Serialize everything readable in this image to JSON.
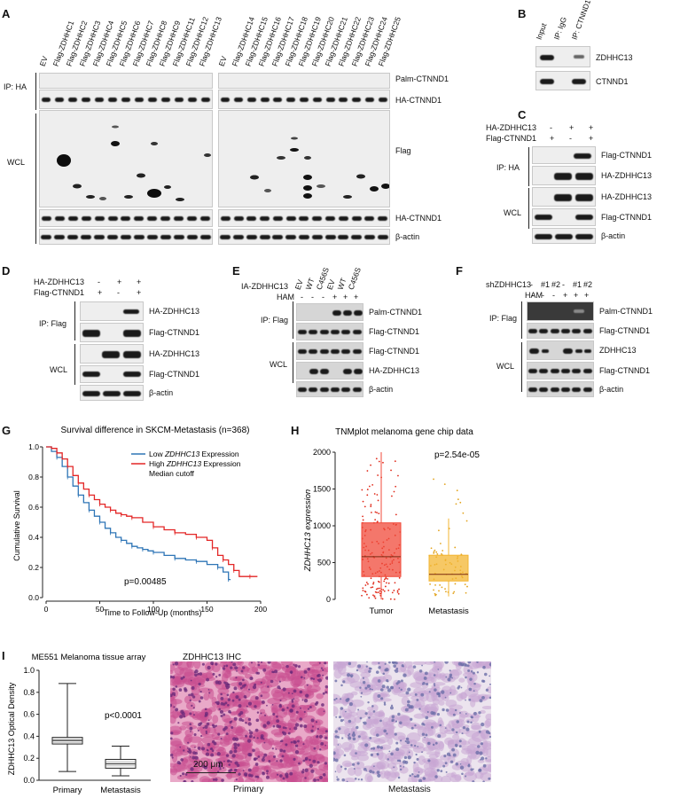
{
  "panels": {
    "A": "A",
    "B": "B",
    "C": "C",
    "D": "D",
    "E": "E",
    "F": "F",
    "G": "G",
    "H": "H",
    "I": "I"
  },
  "panelA": {
    "lanes_left": [
      "EV",
      "Flag-ZDHHC1",
      "Flag-ZDHHC2",
      "Flag-ZDHHC3",
      "Flag-ZDHHC4",
      "Flag-ZDHHC5",
      "Flag-ZDHHC6",
      "Flag-ZDHHC7",
      "Flag-ZDHHC8",
      "Flag-ZDHHC9",
      "Flag-ZDHHC11",
      "Flag-ZDHHC12",
      "Flag-ZDHHC13"
    ],
    "lanes_right": [
      "EV",
      "Flag-ZDHHC14",
      "Flag-ZDHHC15",
      "Flag-ZDHHC16",
      "Flag-ZDHHC17",
      "Flag-ZDHHC18",
      "Flag-ZDHHC19",
      "Flag-ZDHHC20",
      "Flag-ZDHHC21",
      "Flag-ZDHHC22",
      "Flag-ZDHHC23",
      "Flag-ZDHHC24",
      "Flag-ZDHHC25"
    ],
    "group_ip": "IP: HA",
    "group_wcl": "WCL",
    "rows": [
      "Palm-CTNND1",
      "HA-CTNND1",
      "Flag",
      "HA-CTNND1",
      "β-actin"
    ]
  },
  "panelB": {
    "lanes": [
      "Input",
      "IP: IgG",
      "IP: CTNND1"
    ],
    "rows": [
      "ZDHHC13",
      "CTNND1"
    ]
  },
  "panelC": {
    "conditions": [
      {
        "label": "HA-ZDHHC13",
        "signs": [
          "-",
          "+",
          "+"
        ]
      },
      {
        "label": "Flag-CTNND1",
        "signs": [
          "+",
          "-",
          "+"
        ]
      }
    ],
    "group_ip": "IP: HA",
    "group_wcl": "WCL",
    "rows": [
      "Flag-CTNND1",
      "HA-ZDHHC13",
      "HA-ZDHHC13",
      "Flag-CTNND1",
      "β-actin"
    ]
  },
  "panelD": {
    "conditions": [
      {
        "label": "HA-ZDHHC13",
        "signs": [
          "-",
          "+",
          "+"
        ]
      },
      {
        "label": "Flag-CTNND1",
        "signs": [
          "+",
          "-",
          "+"
        ]
      }
    ],
    "group_ip": "IP: Flag",
    "group_wcl": "WCL",
    "rows": [
      "HA-ZDHHC13",
      "Flag-CTNND1",
      "HA-ZDHHC13",
      "Flag-CTNND1",
      "β-actin"
    ]
  },
  "panelE": {
    "row_label": "IA-ZDHHC13",
    "lanes": [
      "EV",
      "WT",
      "C456S",
      "EV",
      "WT",
      "C456S"
    ],
    "ham_label": "HAM",
    "ham_signs": [
      "-",
      "-",
      "-",
      "+",
      "+",
      "+"
    ],
    "group_ip": "IP: Flag",
    "group_wcl": "WCL",
    "rows": [
      "Palm-CTNND1",
      "Flag-CTNND1",
      "Flag-CTNND1",
      "HA-ZDHHC13",
      "β-actin"
    ]
  },
  "panelF": {
    "row_label": "shZDHHC13",
    "sh_signs": [
      "-",
      "#1",
      "#2",
      "-",
      "#1",
      "#2"
    ],
    "ham_label": "HAM",
    "ham_signs": [
      "-",
      "-",
      "-",
      "+",
      "+",
      "+"
    ],
    "group_ip": "IP: Flag",
    "group_wcl": "WCL",
    "rows": [
      "Palm-CTNND1",
      "Flag-CTNND1",
      "ZDHHC13",
      "Flag-CTNND1",
      "β-actin"
    ]
  },
  "panelI": {
    "title": "ME551 Melanoma tissue array",
    "ihc_title": "ZDHHC13 IHC",
    "scale_bar": "200 μm",
    "img_label_primary": "Primary",
    "img_label_metastasis": "Metastasis"
  },
  "chart_data": [
    {
      "type": "line",
      "title": "Survival difference in SKCM-Metastasis (n=368)",
      "xlabel": "Time to Follow-Up (months)",
      "ylabel": "Cumulative Survival",
      "xlim": [
        0,
        200
      ],
      "ylim": [
        0,
        1.0
      ],
      "xticks": [
        0,
        50,
        100,
        150,
        200
      ],
      "yticks": [
        "0.0",
        "0.2",
        "0.4",
        "0.6",
        "0.8",
        "1.0"
      ],
      "legend_title": "",
      "legend": [
        {
          "name": "Low ZDHHC13 Expression",
          "color": "#2e75b6"
        },
        {
          "name": "High ZDHHC13 Expression",
          "color": "#e32626"
        },
        {
          "name": "Median cutoff",
          "color": ""
        }
      ],
      "legend_prefix_low": "Low ",
      "legend_gene": "ZDHHC13",
      "legend_suffix": " Expression",
      "legend_prefix_high": "High ",
      "legend_median": "Median cutoff",
      "annotation": "p=0.00485",
      "series": [
        {
          "name": "Low ZDHHC13 Expression",
          "color": "#2e75b6",
          "x": [
            0,
            5,
            10,
            15,
            20,
            25,
            30,
            35,
            40,
            45,
            50,
            55,
            60,
            65,
            70,
            75,
            80,
            85,
            90,
            95,
            100,
            110,
            120,
            130,
            140,
            150,
            160,
            165,
            170,
            172
          ],
          "y": [
            1.0,
            0.97,
            0.93,
            0.87,
            0.8,
            0.74,
            0.68,
            0.63,
            0.58,
            0.54,
            0.5,
            0.46,
            0.43,
            0.4,
            0.38,
            0.36,
            0.34,
            0.33,
            0.32,
            0.31,
            0.3,
            0.28,
            0.26,
            0.25,
            0.24,
            0.22,
            0.2,
            0.17,
            0.12,
            0.12
          ]
        },
        {
          "name": "High ZDHHC13 Expression",
          "color": "#e32626",
          "x": [
            0,
            5,
            10,
            15,
            20,
            25,
            30,
            35,
            40,
            45,
            50,
            55,
            60,
            65,
            70,
            75,
            80,
            90,
            100,
            110,
            120,
            130,
            140,
            150,
            155,
            160,
            165,
            170,
            175,
            180,
            190,
            197
          ],
          "y": [
            1.0,
            0.99,
            0.96,
            0.92,
            0.87,
            0.81,
            0.76,
            0.72,
            0.68,
            0.65,
            0.62,
            0.6,
            0.58,
            0.56,
            0.55,
            0.54,
            0.53,
            0.5,
            0.47,
            0.45,
            0.43,
            0.42,
            0.4,
            0.38,
            0.33,
            0.28,
            0.25,
            0.22,
            0.18,
            0.14,
            0.14,
            0.14
          ]
        }
      ]
    },
    {
      "type": "box",
      "title": "TNMplot melanoma gene chip data",
      "ylabel": "ZDHHC13 expression",
      "categories": [
        "Tumor",
        "Metastasis"
      ],
      "ylim": [
        0,
        2000
      ],
      "yticks": [
        "0",
        "500",
        "1000",
        "1500",
        "2000"
      ],
      "annotation": "p=2.54e-05",
      "boxes": [
        {
          "name": "Tumor",
          "color": "#f04a3a",
          "q1": 310,
          "median": 580,
          "q3": 1040,
          "whisker_low": 0,
          "whisker_high": 2000
        },
        {
          "name": "Metastasis",
          "color": "#f3b531",
          "q1": 250,
          "median": 340,
          "q3": 600,
          "whisker_low": 40,
          "whisker_high": 1100
        }
      ]
    },
    {
      "type": "box",
      "title": "ME551 Melanoma tissue array",
      "ylabel": "ZDHHC13 Optical Density",
      "categories": [
        "Primary",
        "Metastasis"
      ],
      "ylim": [
        0,
        1.0
      ],
      "yticks": [
        "0.0",
        "0.2",
        "0.4",
        "0.6",
        "0.8",
        "1.0"
      ],
      "annotation": "p<0.0001",
      "boxes": [
        {
          "name": "Primary",
          "q1": 0.33,
          "median": 0.36,
          "q3": 0.39,
          "whisker_low": 0.08,
          "whisker_high": 0.88
        },
        {
          "name": "Metastasis",
          "q1": 0.11,
          "median": 0.15,
          "q3": 0.19,
          "whisker_low": 0.04,
          "whisker_high": 0.31
        }
      ]
    }
  ]
}
